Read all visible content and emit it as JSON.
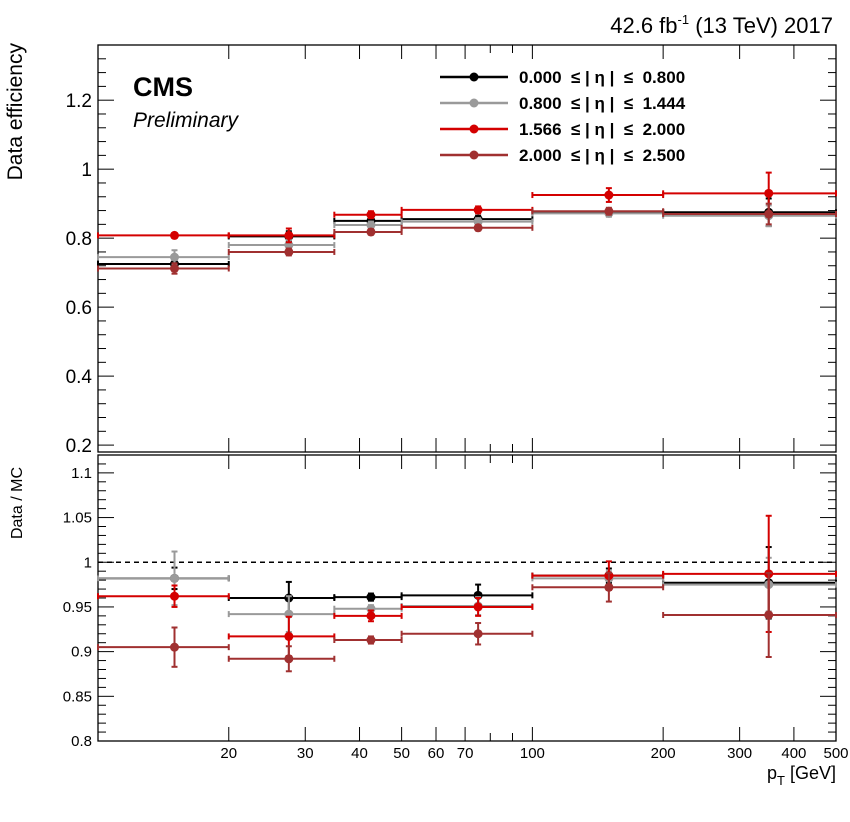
{
  "lumi_label": {
    "main": "42.6 fb",
    "sup": "-1",
    "rest": " (13 TeV) 2017"
  },
  "cms_label": "CMS",
  "preliminary_label": "Preliminary",
  "colors": {
    "black": "#000000",
    "gray": "#9a9a9a",
    "red": "#d40000",
    "darkred": "#a03030"
  },
  "chart_data": [
    {
      "type": "scatter",
      "title": "",
      "xlabel": "p_T [GeV]",
      "ylabel": "Data efficiency",
      "xscale": "log",
      "xlim": [
        10,
        500
      ],
      "ylim": [
        0.18,
        1.36
      ],
      "yticks": [
        "0.2",
        "0.4",
        "0.6",
        "0.8",
        "1",
        "1.2"
      ],
      "legend_position": "top-right",
      "series": [
        {
          "name": "0.000  ≤ | η |  ≤  0.800",
          "color": "#000000",
          "points": [
            {
              "x": 15,
              "xlo": 10,
              "xhi": 20,
              "y": 0.725,
              "err": 0.02
            },
            {
              "x": 27.5,
              "xlo": 20,
              "xhi": 35,
              "y": 0.805,
              "err": 0.015
            },
            {
              "x": 42.5,
              "xlo": 35,
              "xhi": 50,
              "y": 0.85,
              "err": 0.01
            },
            {
              "x": 75,
              "xlo": 50,
              "xhi": 100,
              "y": 0.855,
              "err": 0.01
            },
            {
              "x": 150,
              "xlo": 100,
              "xhi": 200,
              "y": 0.875,
              "err": 0.01
            },
            {
              "x": 350,
              "xlo": 200,
              "xhi": 500,
              "y": 0.875,
              "err": 0.04
            }
          ]
        },
        {
          "name": "0.800  ≤ | η |  ≤  1.444",
          "color": "#9a9a9a",
          "points": [
            {
              "x": 15,
              "xlo": 10,
              "xhi": 20,
              "y": 0.745,
              "err": 0.02
            },
            {
              "x": 27.5,
              "xlo": 20,
              "xhi": 35,
              "y": 0.78,
              "err": 0.015
            },
            {
              "x": 42.5,
              "xlo": 35,
              "xhi": 50,
              "y": 0.838,
              "err": 0.01
            },
            {
              "x": 75,
              "xlo": 50,
              "xhi": 100,
              "y": 0.848,
              "err": 0.01
            },
            {
              "x": 150,
              "xlo": 100,
              "xhi": 200,
              "y": 0.872,
              "err": 0.01
            },
            {
              "x": 350,
              "xlo": 200,
              "xhi": 500,
              "y": 0.865,
              "err": 0.03
            }
          ]
        },
        {
          "name": "1.566  ≤ | η |  ≤  2.000",
          "color": "#d40000",
          "points": [
            {
              "x": 15,
              "xlo": 10,
              "xhi": 20,
              "y": 0.808,
              "err": 0.005
            },
            {
              "x": 27.5,
              "xlo": 20,
              "xhi": 35,
              "y": 0.808,
              "err": 0.02
            },
            {
              "x": 42.5,
              "xlo": 35,
              "xhi": 50,
              "y": 0.868,
              "err": 0.01
            },
            {
              "x": 75,
              "xlo": 50,
              "xhi": 100,
              "y": 0.882,
              "err": 0.01
            },
            {
              "x": 150,
              "xlo": 100,
              "xhi": 200,
              "y": 0.925,
              "err": 0.02
            },
            {
              "x": 350,
              "xlo": 200,
              "xhi": 500,
              "y": 0.93,
              "err": 0.06
            }
          ]
        },
        {
          "name": "2.000  ≤ | η |  ≤  2.500",
          "color": "#a03030",
          "points": [
            {
              "x": 15,
              "xlo": 10,
              "xhi": 20,
              "y": 0.712,
              "err": 0.015
            },
            {
              "x": 27.5,
              "xlo": 20,
              "xhi": 35,
              "y": 0.76,
              "err": 0.01
            },
            {
              "x": 42.5,
              "xlo": 35,
              "xhi": 50,
              "y": 0.818,
              "err": 0.008
            },
            {
              "x": 75,
              "xlo": 50,
              "xhi": 100,
              "y": 0.83,
              "err": 0.008
            },
            {
              "x": 150,
              "xlo": 100,
              "xhi": 200,
              "y": 0.878,
              "err": 0.01
            },
            {
              "x": 350,
              "xlo": 200,
              "xhi": 500,
              "y": 0.87,
              "err": 0.03
            }
          ]
        }
      ]
    },
    {
      "type": "scatter",
      "title": "",
      "xlabel": "p_T [GeV]",
      "ylabel": "Data / MC",
      "xscale": "log",
      "xlim": [
        10,
        500
      ],
      "ylim": [
        0.8,
        1.12
      ],
      "yticks": [
        "0.8",
        "0.85",
        "0.9",
        "0.95",
        "1",
        "1.05",
        "1.1"
      ],
      "xticks": [
        "20",
        "30",
        "40",
        "50",
        "60",
        "70",
        "100",
        "200",
        "300",
        "400",
        "500"
      ],
      "reference_line": 1.0,
      "series": [
        {
          "name": "0.000  ≤ | η |  ≤  0.800",
          "color": "#000000",
          "points": [
            {
              "x": 15,
              "xlo": 10,
              "xhi": 20,
              "y": 0.982,
              "err": 0.012
            },
            {
              "x": 27.5,
              "xlo": 20,
              "xhi": 35,
              "y": 0.96,
              "err": 0.018
            },
            {
              "x": 42.5,
              "xlo": 35,
              "xhi": 50,
              "y": 0.961,
              "err": 0.004
            },
            {
              "x": 75,
              "xlo": 50,
              "xhi": 100,
              "y": 0.963,
              "err": 0.012
            },
            {
              "x": 150,
              "xlo": 100,
              "xhi": 200,
              "y": 0.985,
              "err": 0.008
            },
            {
              "x": 350,
              "xlo": 200,
              "xhi": 500,
              "y": 0.977,
              "err": 0.04
            }
          ]
        },
        {
          "name": "0.800  ≤ | η |  ≤  1.444",
          "color": "#9a9a9a",
          "points": [
            {
              "x": 15,
              "xlo": 10,
              "xhi": 20,
              "y": 0.982,
              "err": 0.03
            },
            {
              "x": 27.5,
              "xlo": 20,
              "xhi": 35,
              "y": 0.942,
              "err": 0.02
            },
            {
              "x": 42.5,
              "xlo": 35,
              "xhi": 50,
              "y": 0.948,
              "err": 0.004
            },
            {
              "x": 75,
              "xlo": 50,
              "xhi": 100,
              "y": 0.951,
              "err": 0.01
            },
            {
              "x": 150,
              "xlo": 100,
              "xhi": 200,
              "y": 0.982,
              "err": 0.008
            },
            {
              "x": 350,
              "xlo": 200,
              "xhi": 500,
              "y": 0.975,
              "err": 0.03
            }
          ]
        },
        {
          "name": "1.566  ≤ | η |  ≤  2.000",
          "color": "#d40000",
          "points": [
            {
              "x": 15,
              "xlo": 10,
              "xhi": 20,
              "y": 0.962,
              "err": 0.012
            },
            {
              "x": 27.5,
              "xlo": 20,
              "xhi": 35,
              "y": 0.917,
              "err": 0.022
            },
            {
              "x": 42.5,
              "xlo": 35,
              "xhi": 50,
              "y": 0.94,
              "err": 0.006
            },
            {
              "x": 75,
              "xlo": 50,
              "xhi": 100,
              "y": 0.95,
              "err": 0.01
            },
            {
              "x": 150,
              "xlo": 100,
              "xhi": 200,
              "y": 0.985,
              "err": 0.016
            },
            {
              "x": 350,
              "xlo": 200,
              "xhi": 500,
              "y": 0.987,
              "err": 0.065
            }
          ]
        },
        {
          "name": "2.000  ≤ | η |  ≤  2.500",
          "color": "#a03030",
          "points": [
            {
              "x": 15,
              "xlo": 10,
              "xhi": 20,
              "y": 0.905,
              "err": 0.022
            },
            {
              "x": 27.5,
              "xlo": 20,
              "xhi": 35,
              "y": 0.892,
              "err": 0.014
            },
            {
              "x": 42.5,
              "xlo": 35,
              "xhi": 50,
              "y": 0.913,
              "err": 0.004
            },
            {
              "x": 75,
              "xlo": 50,
              "xhi": 100,
              "y": 0.92,
              "err": 0.012
            },
            {
              "x": 150,
              "xlo": 100,
              "xhi": 200,
              "y": 0.972,
              "err": 0.016
            },
            {
              "x": 350,
              "xlo": 200,
              "xhi": 500,
              "y": 0.941,
              "err": 0.047
            }
          ]
        }
      ]
    }
  ]
}
